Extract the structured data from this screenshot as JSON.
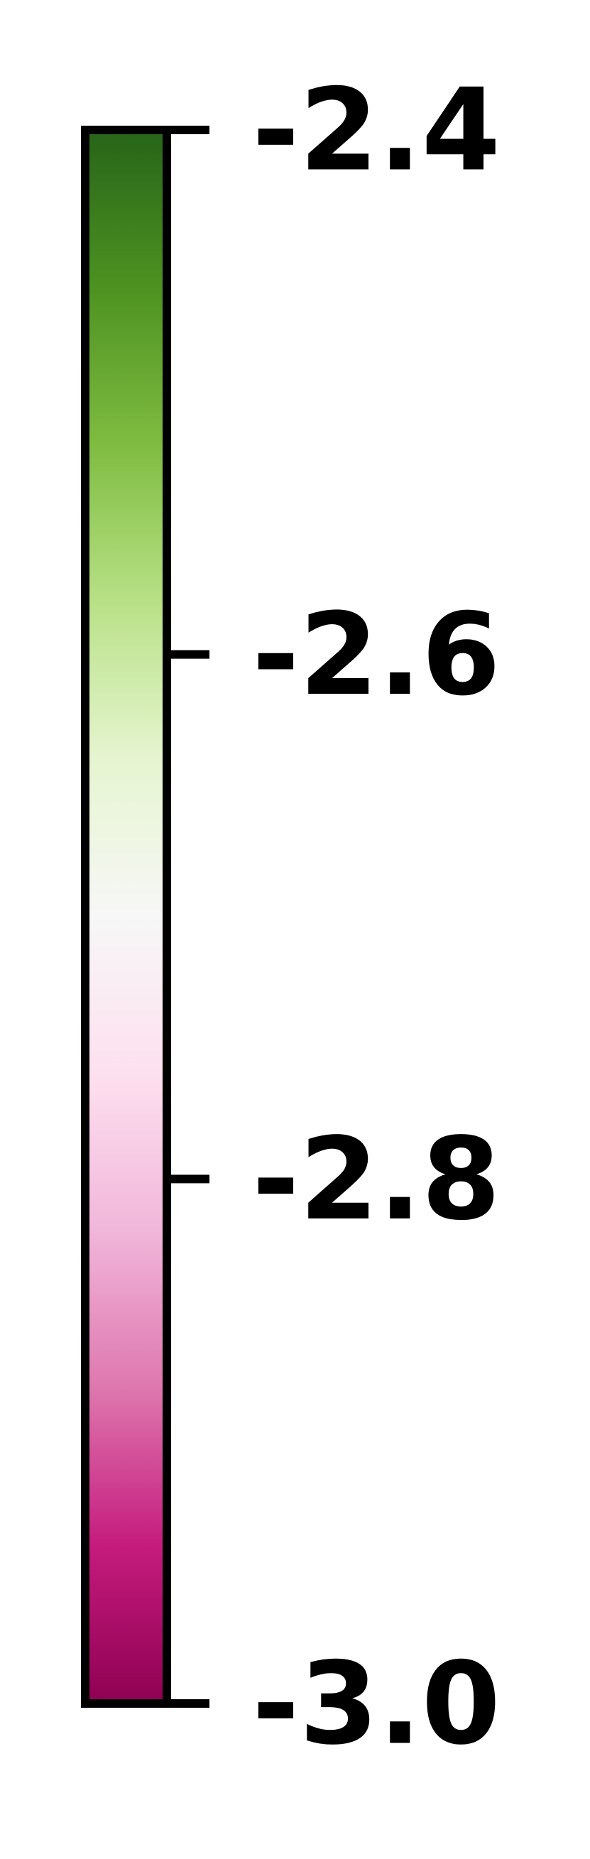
{
  "chart_data": {
    "type": "colorbar",
    "orientation": "vertical",
    "colormap": "PiYG",
    "range": [
      -3.0,
      -2.4
    ],
    "ticks": [
      {
        "value": -2.4,
        "label": "-2.4"
      },
      {
        "value": -2.6,
        "label": "-2.6"
      },
      {
        "value": -2.8,
        "label": "-2.8"
      },
      {
        "value": -3.0,
        "label": "-3.0"
      }
    ],
    "color_stops": [
      {
        "value": -3.0,
        "color": "#8e0152"
      },
      {
        "value": -2.94,
        "color": "#c51b7d"
      },
      {
        "value": -2.88,
        "color": "#de77ae"
      },
      {
        "value": -2.82,
        "color": "#f1b6da"
      },
      {
        "value": -2.76,
        "color": "#fde0ef"
      },
      {
        "value": -2.7,
        "color": "#f7f7f7"
      },
      {
        "value": -2.64,
        "color": "#e6f5d0"
      },
      {
        "value": -2.58,
        "color": "#b8e186"
      },
      {
        "value": -2.52,
        "color": "#7fbc41"
      },
      {
        "value": -2.46,
        "color": "#4d9221"
      },
      {
        "value": -2.4,
        "color": "#276419"
      }
    ],
    "frame_color": "#000000"
  }
}
